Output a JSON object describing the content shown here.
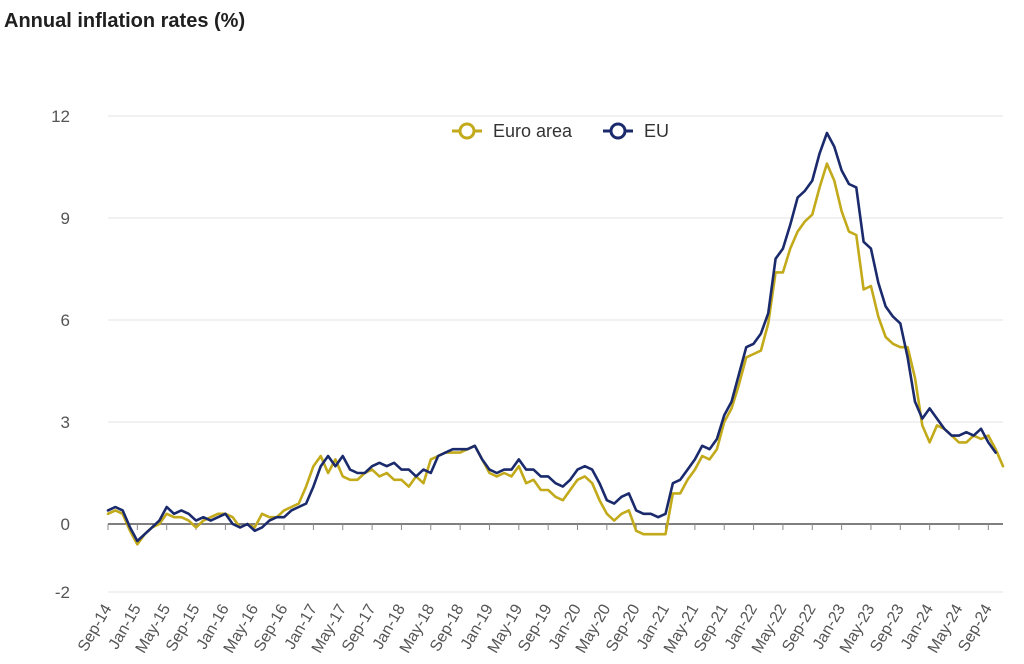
{
  "chart_data": {
    "type": "line",
    "title": "Annual inflation rates (%)",
    "xlabel": "",
    "ylabel": "",
    "ylim": [
      -2,
      12
    ],
    "yticks": [
      -2,
      0,
      3,
      6,
      9,
      12
    ],
    "grid": true,
    "legend_position": "top-center",
    "x_tick_labels": [
      "Sep-14",
      "Jan-15",
      "May-15",
      "Sep-15",
      "Jan-16",
      "May-16",
      "Sep-16",
      "Jan-17",
      "May-17",
      "Sep-17",
      "Jan-18",
      "May-18",
      "Sep-18",
      "Jan-19",
      "May-19",
      "Sep-19",
      "Jan-20",
      "May-20",
      "Sep-20",
      "Jan-21",
      "May-21",
      "Sep-21",
      "Jan-22",
      "May-22",
      "Sep-22",
      "Jan-23",
      "May-23",
      "Sep-23",
      "Jan-24",
      "May-24",
      "Sep-24"
    ],
    "x_start": "Sep-14",
    "x_end": "Oct-24",
    "series": [
      {
        "name": "Euro area",
        "color": "#c2aa1a",
        "values": [
          0.3,
          0.4,
          0.3,
          -0.2,
          -0.6,
          -0.3,
          -0.1,
          0.0,
          0.3,
          0.2,
          0.2,
          0.1,
          -0.1,
          0.1,
          0.2,
          0.3,
          0.3,
          0.2,
          -0.1,
          0.0,
          -0.1,
          0.3,
          0.2,
          0.2,
          0.4,
          0.5,
          0.6,
          1.1,
          1.7,
          2.0,
          1.5,
          1.9,
          1.4,
          1.3,
          1.3,
          1.5,
          1.6,
          1.4,
          1.5,
          1.3,
          1.3,
          1.1,
          1.4,
          1.2,
          1.9,
          2.0,
          2.1,
          2.1,
          2.1,
          2.2,
          2.3,
          1.9,
          1.5,
          1.4,
          1.5,
          1.4,
          1.7,
          1.2,
          1.3,
          1.0,
          1.0,
          0.8,
          0.7,
          1.0,
          1.3,
          1.4,
          1.2,
          0.7,
          0.3,
          0.1,
          0.3,
          0.4,
          -0.2,
          -0.3,
          -0.3,
          -0.3,
          -0.3,
          0.9,
          0.9,
          1.3,
          1.6,
          2.0,
          1.9,
          2.2,
          3.0,
          3.4,
          4.1,
          4.9,
          5.0,
          5.1,
          5.9,
          7.4,
          7.4,
          8.1,
          8.6,
          8.9,
          9.1,
          9.9,
          10.6,
          10.1,
          9.2,
          8.6,
          8.5,
          6.9,
          7.0,
          6.1,
          5.5,
          5.3,
          5.2,
          5.2,
          4.3,
          2.9,
          2.4,
          2.9,
          2.8,
          2.6,
          2.4,
          2.4,
          2.6,
          2.5,
          2.6,
          2.2,
          1.7
        ]
      },
      {
        "name": "EU",
        "color": "#1a2a6c",
        "values": [
          0.4,
          0.5,
          0.4,
          -0.1,
          -0.5,
          -0.3,
          -0.1,
          0.1,
          0.5,
          0.3,
          0.4,
          0.3,
          0.1,
          0.2,
          0.1,
          0.2,
          0.3,
          0.0,
          -0.1,
          0.0,
          -0.2,
          -0.1,
          0.1,
          0.2,
          0.2,
          0.4,
          0.5,
          0.6,
          1.1,
          1.7,
          2.0,
          1.7,
          2.0,
          1.6,
          1.5,
          1.5,
          1.7,
          1.8,
          1.7,
          1.8,
          1.6,
          1.6,
          1.4,
          1.6,
          1.5,
          2.0,
          2.1,
          2.2,
          2.2,
          2.2,
          2.3,
          1.9,
          1.6,
          1.5,
          1.6,
          1.6,
          1.9,
          1.6,
          1.6,
          1.4,
          1.4,
          1.2,
          1.1,
          1.3,
          1.6,
          1.7,
          1.6,
          1.2,
          0.7,
          0.6,
          0.8,
          0.9,
          0.4,
          0.3,
          0.3,
          0.2,
          0.3,
          1.2,
          1.3,
          1.6,
          1.9,
          2.3,
          2.2,
          2.5,
          3.2,
          3.6,
          4.4,
          5.2,
          5.3,
          5.6,
          6.2,
          7.8,
          8.1,
          8.8,
          9.6,
          9.8,
          10.1,
          10.9,
          11.5,
          11.1,
          10.4,
          10.0,
          9.9,
          8.3,
          8.1,
          7.1,
          6.4,
          6.1,
          5.9,
          4.9,
          3.6,
          3.1,
          3.4,
          3.1,
          2.8,
          2.6,
          2.6,
          2.7,
          2.6,
          2.8,
          2.4,
          2.1
        ]
      }
    ]
  }
}
